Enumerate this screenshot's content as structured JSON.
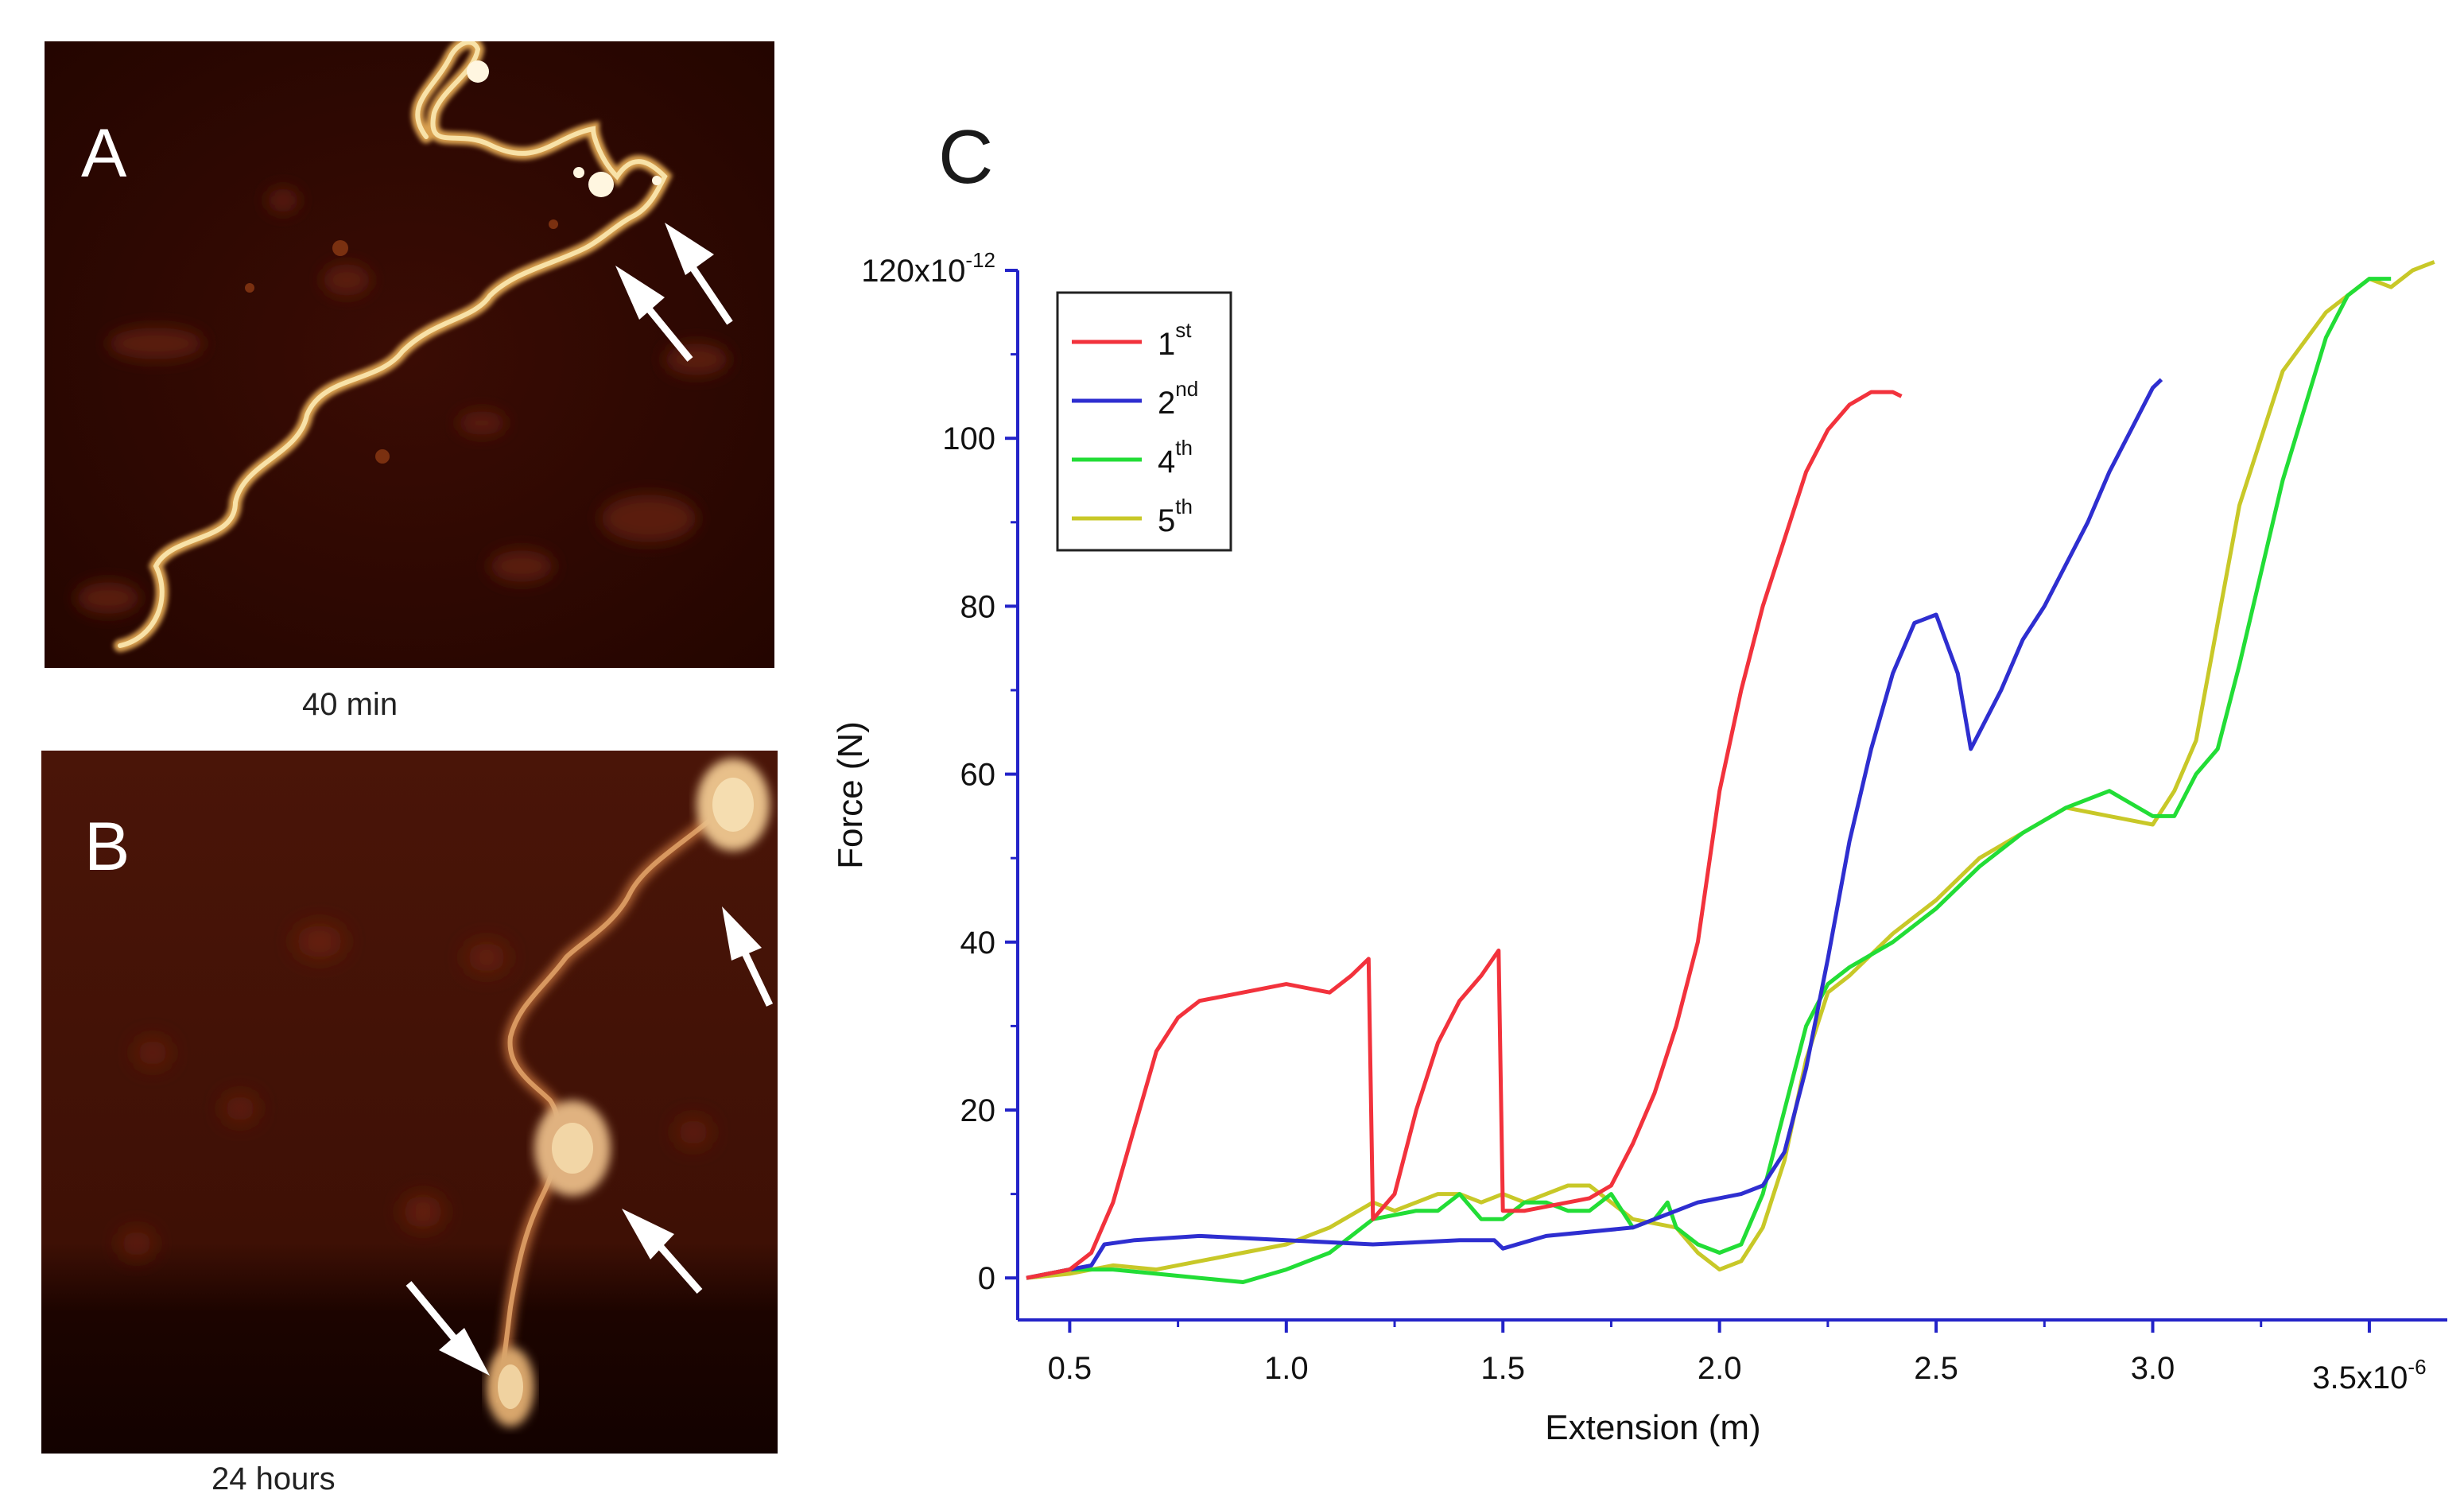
{
  "panels": {
    "a": {
      "letter": "A",
      "caption": "40 min"
    },
    "b": {
      "letter": "B",
      "caption": "24 hours"
    },
    "c": {
      "letter": "C"
    }
  },
  "chart_data": {
    "type": "line",
    "xlabel": "Extension (m)",
    "ylabel": "Force (N)",
    "xlim": [
      0.38,
      3.68
    ],
    "ylim": [
      -5,
      120
    ],
    "x_scale_label": "3.5x10",
    "x_scale_exp": "-6",
    "y_scale_label": "120x10",
    "y_scale_exp": "-12",
    "xticks": [
      0.5,
      1.0,
      1.5,
      2.0,
      2.5,
      3.0,
      3.5
    ],
    "xtick_labels": [
      "0.5",
      "1.0",
      "1.5",
      "2.0",
      "2.5",
      "3.0",
      ""
    ],
    "yticks": [
      0,
      20,
      40,
      60,
      80,
      100,
      120
    ],
    "ytick_labels": [
      "0",
      "20",
      "40",
      "60",
      "80",
      "100",
      ""
    ],
    "legend": "top-left",
    "series": [
      {
        "name": "1",
        "sup": "st",
        "color": "#f2323c",
        "x": [
          0.4,
          0.5,
          0.55,
          0.6,
          0.65,
          0.7,
          0.75,
          0.8,
          0.9,
          1.0,
          1.1,
          1.15,
          1.19,
          1.2,
          1.25,
          1.3,
          1.35,
          1.4,
          1.45,
          1.49,
          1.5,
          1.55,
          1.6,
          1.65,
          1.7,
          1.75,
          1.8,
          1.85,
          1.9,
          1.95,
          2.0,
          2.05,
          2.1,
          2.15,
          2.2,
          2.25,
          2.3,
          2.35,
          2.4,
          2.42
        ],
        "y": [
          0,
          1,
          3,
          9,
          18,
          27,
          31,
          33,
          34,
          35,
          34,
          36,
          38,
          7,
          10,
          20,
          28,
          33,
          36,
          39,
          8,
          8,
          8.5,
          9,
          9.5,
          11,
          16,
          22,
          30,
          40,
          58,
          70,
          80,
          88,
          96,
          101,
          104,
          105.5,
          105.5,
          105
        ]
      },
      {
        "name": "2",
        "sup": "nd",
        "color": "#2e2ed0",
        "x": [
          0.4,
          0.5,
          0.55,
          0.58,
          0.65,
          0.8,
          1.0,
          1.2,
          1.4,
          1.48,
          1.5,
          1.6,
          1.8,
          1.95,
          2.05,
          2.1,
          2.15,
          2.2,
          2.25,
          2.3,
          2.35,
          2.4,
          2.45,
          2.5,
          2.55,
          2.58,
          2.6,
          2.65,
          2.7,
          2.75,
          2.8,
          2.85,
          2.9,
          2.95,
          3.0,
          3.02
        ],
        "y": [
          0,
          1,
          1.5,
          4,
          4.5,
          5,
          4.5,
          4,
          4.5,
          4.5,
          3.5,
          5,
          6,
          9,
          10,
          11,
          15,
          25,
          38,
          52,
          63,
          72,
          78,
          79,
          72,
          63,
          65,
          70,
          76,
          80,
          85,
          90,
          96,
          101,
          106,
          107
        ]
      },
      {
        "name": "4",
        "sup": "th",
        "color": "#22dd36",
        "x": [
          0.4,
          0.5,
          0.6,
          0.7,
          0.8,
          0.9,
          1.0,
          1.1,
          1.2,
          1.3,
          1.35,
          1.4,
          1.45,
          1.5,
          1.55,
          1.6,
          1.65,
          1.7,
          1.75,
          1.8,
          1.85,
          1.88,
          1.9,
          1.95,
          2.0,
          2.05,
          2.1,
          2.15,
          2.2,
          2.25,
          2.3,
          2.4,
          2.5,
          2.6,
          2.7,
          2.8,
          2.9,
          3.0,
          3.05,
          3.1,
          3.15,
          3.2,
          3.3,
          3.4,
          3.45,
          3.5,
          3.55
        ],
        "y": [
          0,
          1,
          1,
          0.5,
          0,
          -0.5,
          1,
          3,
          7,
          8,
          8,
          10,
          7,
          7,
          9,
          9,
          8,
          8,
          10,
          6,
          7,
          9,
          6,
          4,
          3,
          4,
          10,
          20,
          30,
          35,
          37,
          40,
          44,
          49,
          53,
          56,
          58,
          55,
          55,
          60,
          63,
          73,
          95,
          112,
          117,
          119,
          119
        ]
      },
      {
        "name": "5",
        "sup": "th",
        "color": "#c8c828",
        "x": [
          0.4,
          0.5,
          0.6,
          0.7,
          0.8,
          0.9,
          1.0,
          1.1,
          1.2,
          1.25,
          1.3,
          1.35,
          1.4,
          1.45,
          1.5,
          1.55,
          1.6,
          1.65,
          1.7,
          1.75,
          1.8,
          1.9,
          1.95,
          2.0,
          2.05,
          2.1,
          2.15,
          2.2,
          2.25,
          2.3,
          2.4,
          2.5,
          2.6,
          2.7,
          2.8,
          2.9,
          3.0,
          3.05,
          3.1,
          3.15,
          3.2,
          3.3,
          3.4,
          3.5,
          3.55,
          3.6,
          3.65
        ],
        "y": [
          0,
          0.5,
          1.5,
          1,
          2,
          3,
          4,
          6,
          9,
          8,
          9,
          10,
          10,
          9,
          10,
          9,
          10,
          11,
          11,
          9,
          7,
          6,
          3,
          1,
          2,
          6,
          14,
          26,
          34,
          36,
          41,
          45,
          50,
          53,
          56,
          55,
          54,
          58,
          64,
          78,
          92,
          108,
          115,
          119,
          118,
          120,
          121
        ]
      }
    ]
  }
}
